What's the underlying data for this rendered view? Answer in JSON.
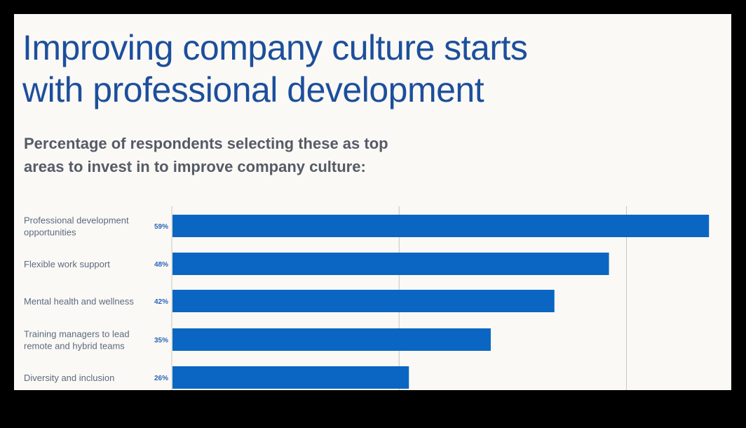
{
  "title_lines": [
    "Improving company culture starts",
    "with professional development"
  ],
  "subtitle_lines": [
    "Percentage of respondents selecting these as top",
    "areas to invest in to improve company culture:"
  ],
  "chart_data": {
    "type": "bar",
    "orientation": "horizontal",
    "categories": [
      [
        "Professional development",
        "opportunities"
      ],
      [
        "Flexible work support"
      ],
      [
        "Mental health and wellness"
      ],
      [
        "Training managers to lead",
        "remote and hybrid teams"
      ],
      [
        "Diversity and inclusion"
      ]
    ],
    "values": [
      59,
      48,
      42,
      35,
      26
    ],
    "value_labels": [
      "59%",
      "48%",
      "42%",
      "35%",
      "26%"
    ],
    "xlim": [
      0,
      59
    ],
    "gridlines": [
      0,
      25,
      50
    ],
    "grid": true,
    "bar_color": "#0a66c2"
  }
}
